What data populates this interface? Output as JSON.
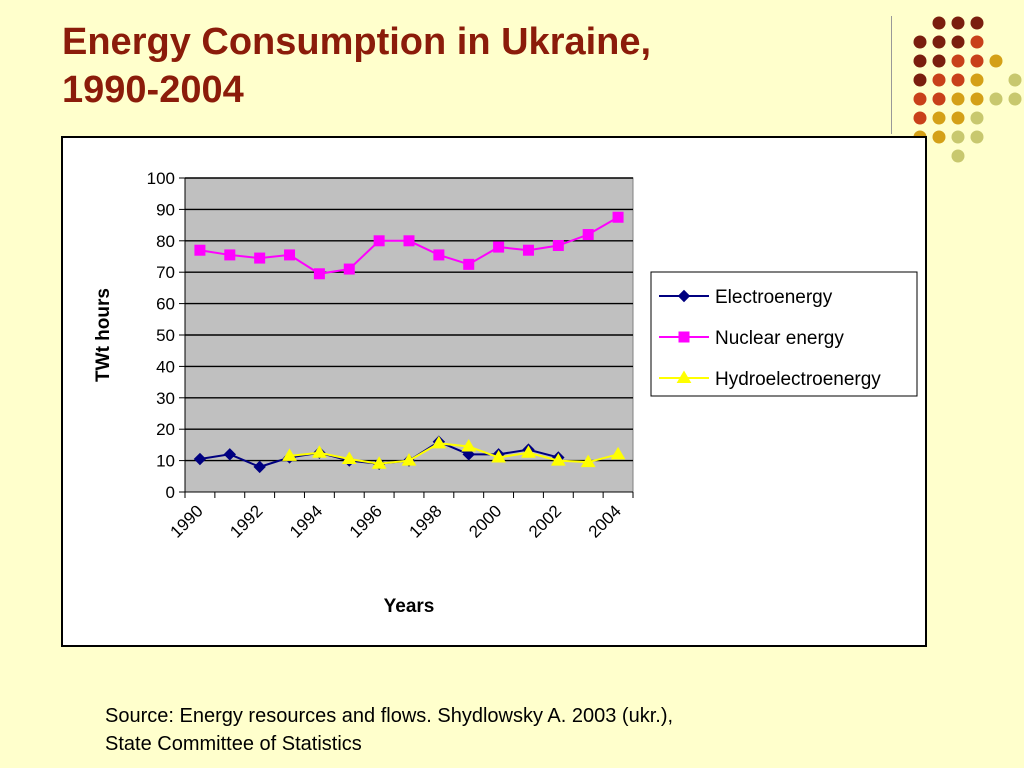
{
  "slide": {
    "title": "Energy Consumption in Ukraine,\n1990-2004",
    "source_line1": "Source: Energy resources and flows. Shydlowsky A. 2003 (ukr.),",
    "source_line2": "State Committee of Statistics"
  },
  "decor": {
    "dot_colors": [
      "#7a1e0e",
      "#c8401a",
      "#d4a017",
      "#c8c86e"
    ]
  },
  "chart_data": {
    "type": "line",
    "xlabel": "Years",
    "ylabel": "TWt hours",
    "ylim": [
      0,
      100
    ],
    "yticks": [
      0,
      10,
      20,
      30,
      40,
      50,
      60,
      70,
      80,
      90,
      100
    ],
    "x_tick_labels": [
      "1990",
      "1992",
      "1994",
      "1996",
      "1998",
      "2000",
      "2002",
      "2004"
    ],
    "grid": true,
    "plot_background": "#c0c0c0",
    "legend_position": "right",
    "x": [
      1990,
      1991,
      1992,
      1993,
      1994,
      1995,
      1996,
      1997,
      1998,
      1999,
      2000,
      2001,
      2002,
      2003,
      2004
    ],
    "series": [
      {
        "name": "Electroenergy",
        "color": "#000080",
        "marker": "diamond",
        "values": [
          10.5,
          12,
          8,
          11,
          12.5,
          10,
          9,
          10,
          16,
          12,
          12,
          13.5,
          11,
          null,
          null
        ]
      },
      {
        "name": "Nuclear energy",
        "color": "#ff00ff",
        "marker": "square",
        "values": [
          77,
          75.5,
          74.5,
          75.5,
          69.5,
          71,
          80,
          80,
          75.5,
          72.5,
          78,
          77,
          78.5,
          82,
          87.5
        ]
      },
      {
        "name": "Hydroelectroenergy",
        "color": "#ffff00",
        "marker": "triangle",
        "values": [
          null,
          null,
          null,
          11.5,
          12.5,
          10.5,
          9,
          10,
          15.5,
          14.5,
          11,
          12.5,
          10,
          9.5,
          12
        ]
      }
    ]
  }
}
